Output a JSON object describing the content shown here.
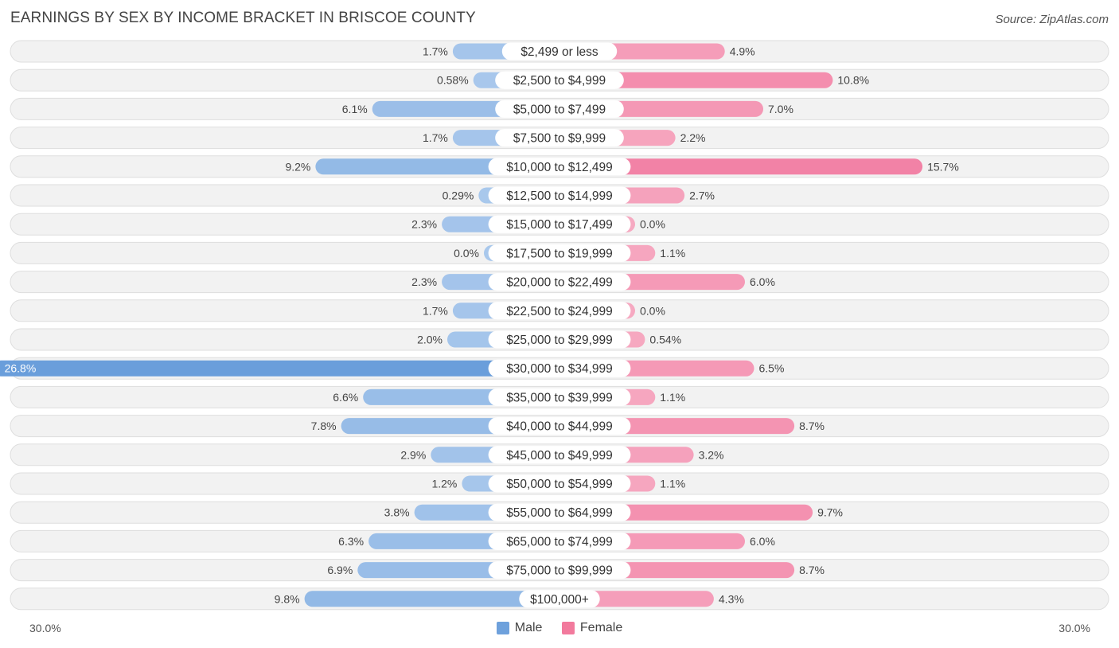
{
  "title": "EARNINGS BY SEX BY INCOME BRACKET IN BRISCOE COUNTY",
  "source": "Source: ZipAtlas.com",
  "colors": {
    "male": "#6ea1dc",
    "female": "#f27a9d",
    "row_bg": "#f2f2f2",
    "row_border": "#dedede"
  },
  "legend": {
    "male_label": "Male",
    "female_label": "Female"
  },
  "axis": {
    "left_label": "30.0%",
    "right_label": "30.0%"
  },
  "chart_data": {
    "type": "bar",
    "orientation": "horizontal-diverging",
    "title": "EARNINGS BY SEX BY INCOME BRACKET IN BRISCOE COUNTY",
    "xlim": [
      -30,
      30
    ],
    "categories": [
      "$2,499 or less",
      "$2,500 to $4,999",
      "$5,000 to $7,499",
      "$7,500 to $9,999",
      "$10,000 to $12,499",
      "$12,500 to $14,999",
      "$15,000 to $17,499",
      "$17,500 to $19,999",
      "$20,000 to $22,499",
      "$22,500 to $24,999",
      "$25,000 to $29,999",
      "$30,000 to $34,999",
      "$35,000 to $39,999",
      "$40,000 to $44,999",
      "$45,000 to $49,999",
      "$50,000 to $54,999",
      "$55,000 to $64,999",
      "$65,000 to $74,999",
      "$75,000 to $99,999",
      "$100,000+"
    ],
    "series": [
      {
        "name": "Male",
        "values": [
          1.7,
          0.58,
          6.1,
          1.7,
          9.2,
          0.29,
          2.3,
          0.0,
          2.3,
          1.7,
          2.0,
          26.8,
          6.6,
          7.8,
          2.9,
          1.2,
          3.8,
          6.3,
          6.9,
          9.8
        ],
        "labels": [
          "1.7%",
          "0.58%",
          "6.1%",
          "1.7%",
          "9.2%",
          "0.29%",
          "2.3%",
          "0.0%",
          "2.3%",
          "1.7%",
          "2.0%",
          "26.8%",
          "6.6%",
          "7.8%",
          "2.9%",
          "1.2%",
          "3.8%",
          "6.3%",
          "6.9%",
          "9.8%"
        ]
      },
      {
        "name": "Female",
        "values": [
          4.9,
          10.8,
          7.0,
          2.2,
          15.7,
          2.7,
          0.0,
          1.1,
          6.0,
          0.0,
          0.54,
          6.5,
          1.1,
          8.7,
          3.2,
          1.1,
          9.7,
          6.0,
          8.7,
          4.3
        ],
        "labels": [
          "4.9%",
          "10.8%",
          "7.0%",
          "2.2%",
          "15.7%",
          "2.7%",
          "0.0%",
          "1.1%",
          "6.0%",
          "0.0%",
          "0.54%",
          "6.5%",
          "1.1%",
          "8.7%",
          "3.2%",
          "1.1%",
          "9.7%",
          "6.0%",
          "8.7%",
          "4.3%"
        ]
      }
    ]
  }
}
